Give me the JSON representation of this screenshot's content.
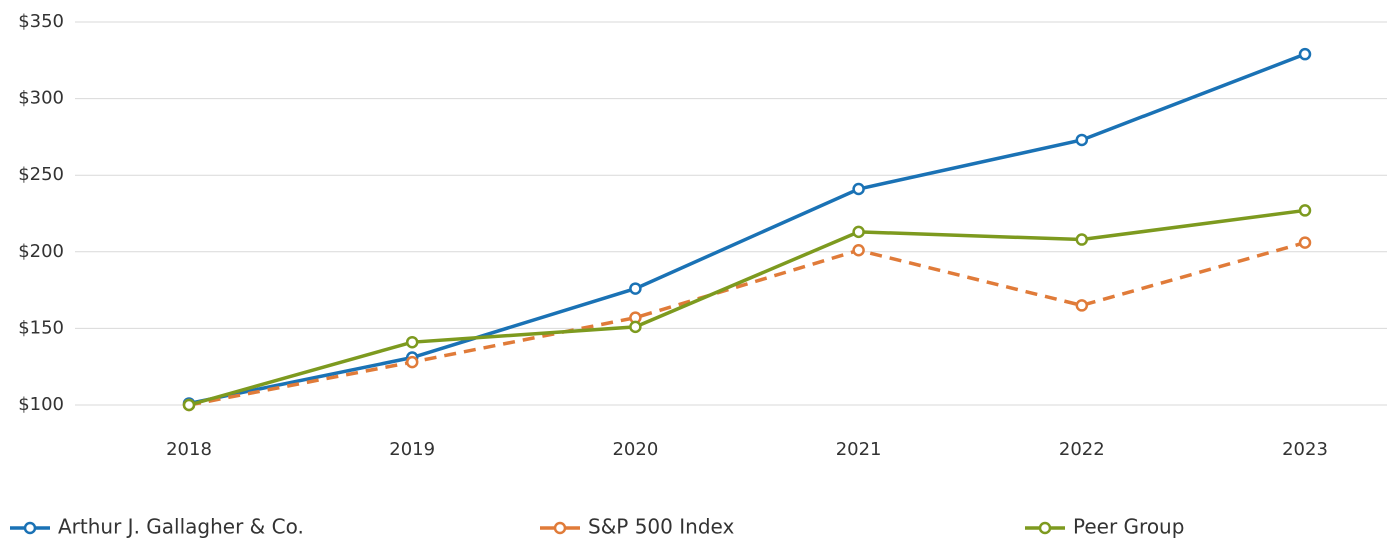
{
  "chart_data": {
    "type": "line",
    "categories": [
      "2018",
      "2019",
      "2020",
      "2021",
      "2022",
      "2023"
    ],
    "series": [
      {
        "name": "Arthur J. Gallagher & Co.",
        "color": "#1a72b5",
        "style": "solid",
        "values": [
          101,
          131,
          176,
          241,
          273,
          329
        ]
      },
      {
        "name": "S&P 500 Index",
        "color": "#e07b39",
        "style": "dashed",
        "values": [
          100,
          128,
          157,
          201,
          165,
          206
        ]
      },
      {
        "name": "Peer Group",
        "color": "#7d9a1f",
        "style": "solid",
        "values": [
          100,
          141,
          151,
          213,
          208,
          227
        ]
      }
    ],
    "ylim": [
      100,
      350
    ],
    "yticks": [
      {
        "value": 100,
        "label": "$100"
      },
      {
        "value": 150,
        "label": "$150"
      },
      {
        "value": 200,
        "label": "$200"
      },
      {
        "value": 250,
        "label": "$250"
      },
      {
        "value": 300,
        "label": "$300"
      },
      {
        "value": 350,
        "label": "$350"
      }
    ],
    "grid": true
  }
}
